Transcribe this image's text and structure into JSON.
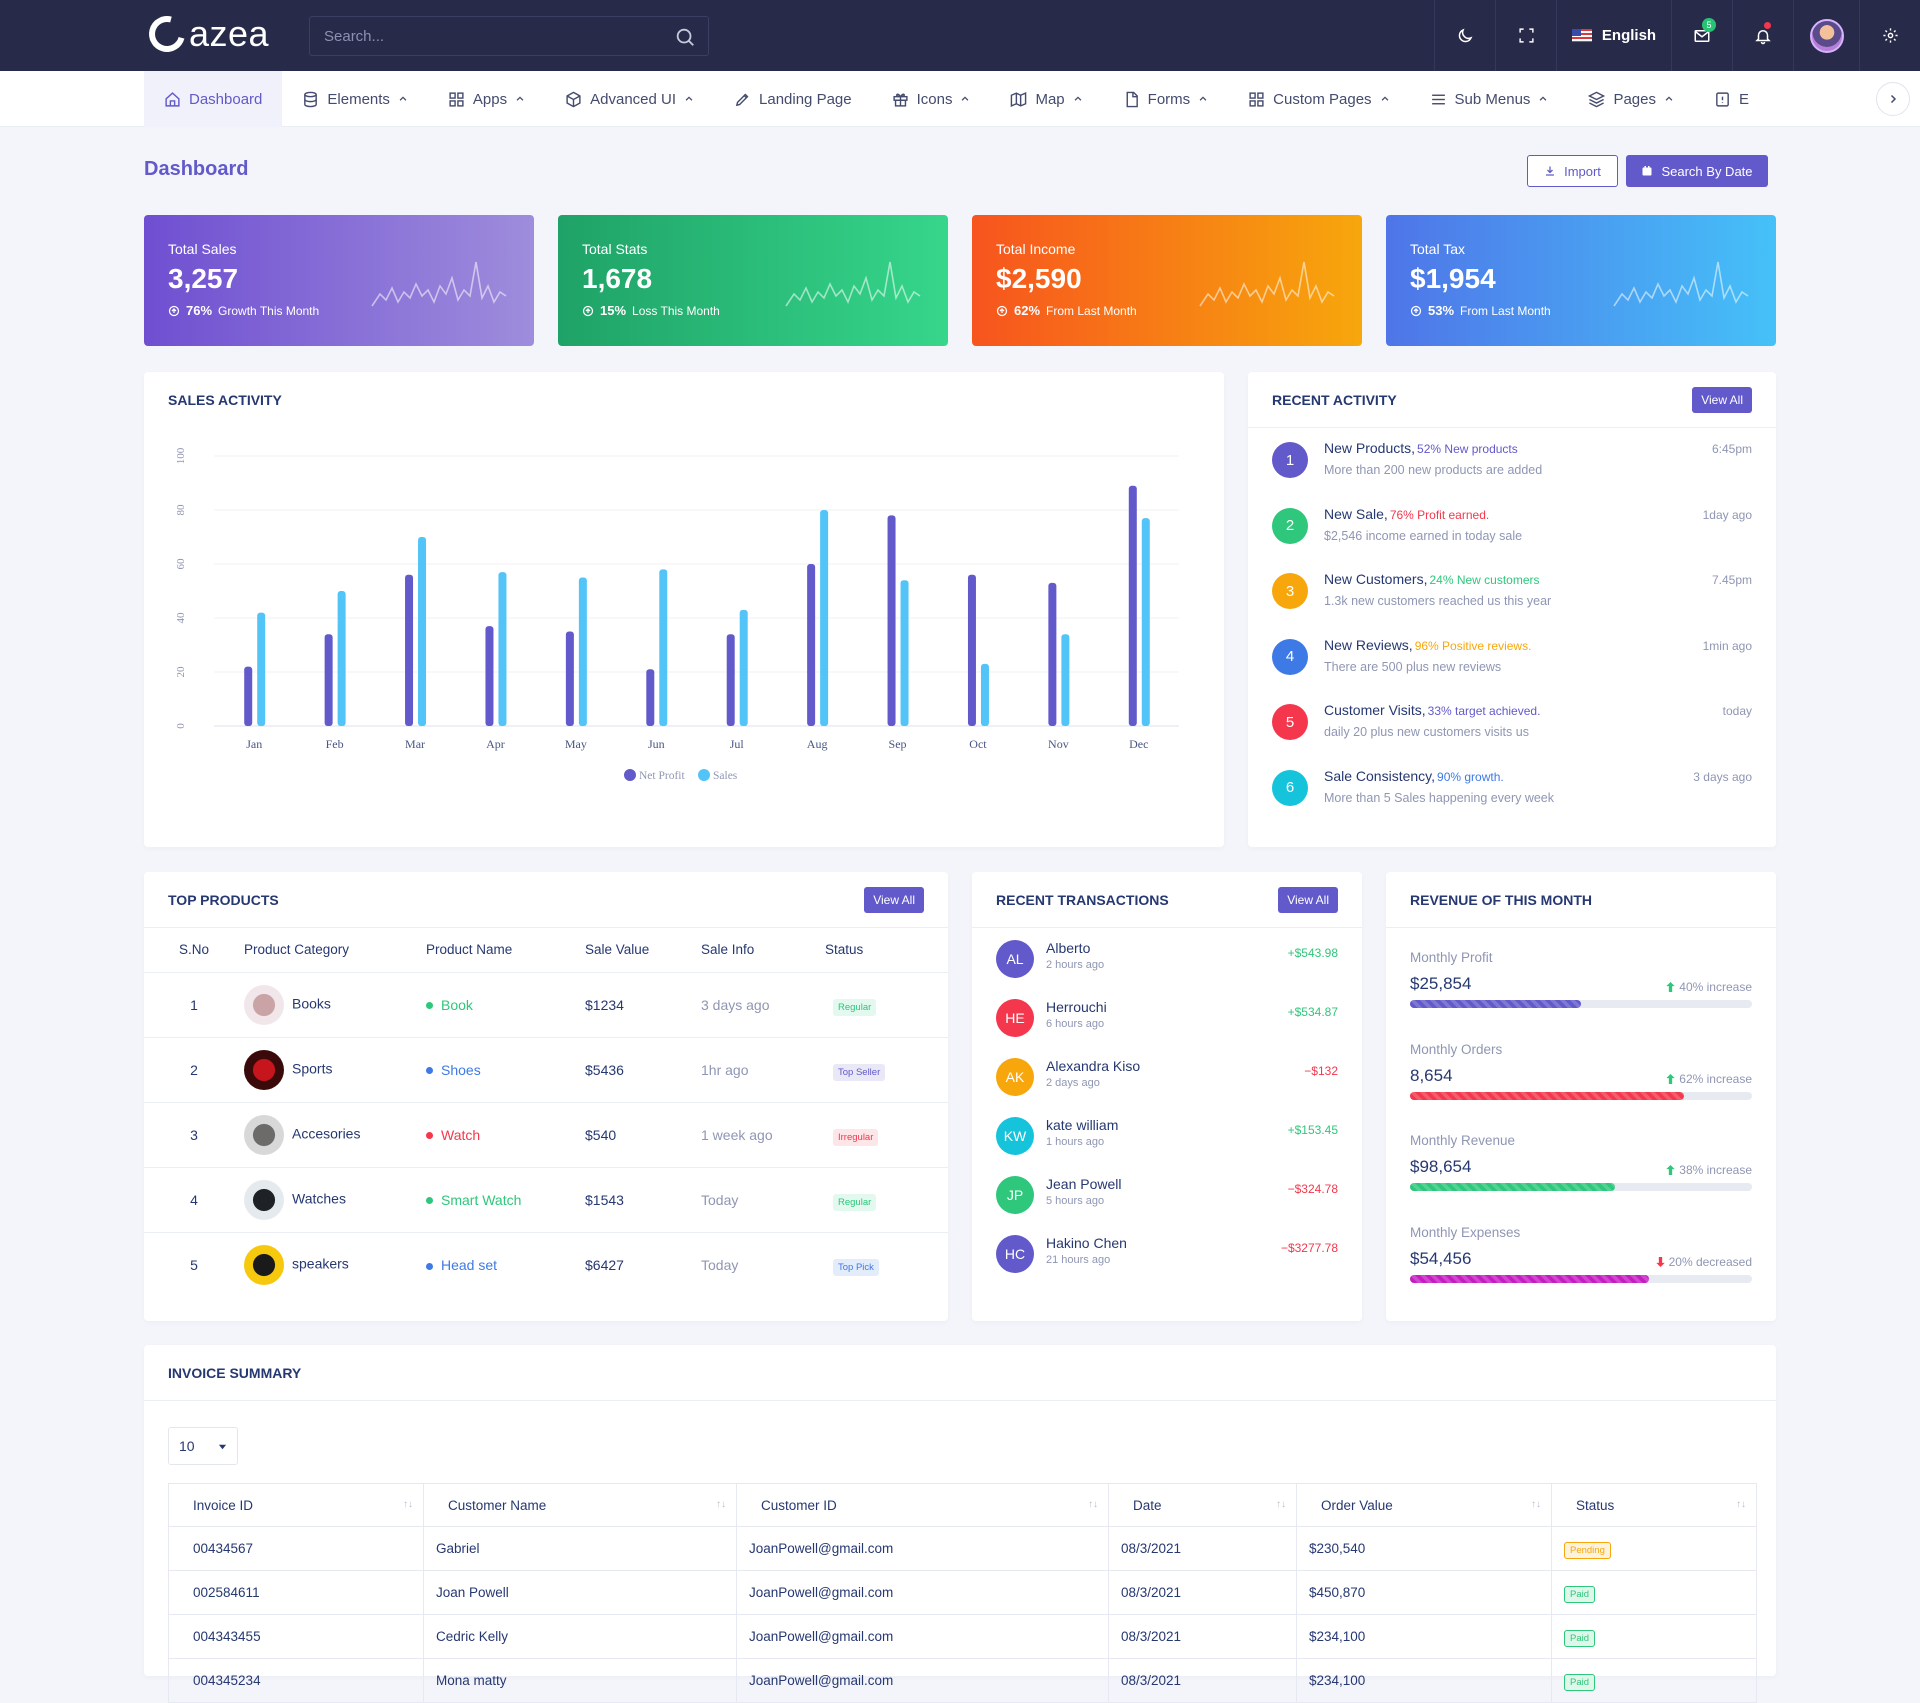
{
  "header": {
    "logo_text": "azea",
    "search_placeholder": "Search...",
    "language": "English",
    "mail_badge": "5"
  },
  "nav": {
    "items": [
      {
        "label": "Dashboard",
        "icon": "home-icon",
        "chevron": false,
        "active": true
      },
      {
        "label": "Elements",
        "icon": "database-icon",
        "chevron": true
      },
      {
        "label": "Apps",
        "icon": "grid-icon",
        "chevron": true
      },
      {
        "label": "Advanced UI",
        "icon": "package-icon",
        "chevron": true
      },
      {
        "label": "Landing Page",
        "icon": "edit-icon",
        "chevron": false
      },
      {
        "label": "Icons",
        "icon": "gift-icon",
        "chevron": true
      },
      {
        "label": "Map",
        "icon": "map-icon",
        "chevron": true
      },
      {
        "label": "Forms",
        "icon": "file-icon",
        "chevron": true
      },
      {
        "label": "Custom Pages",
        "icon": "grid-icon",
        "chevron": true
      },
      {
        "label": "Sub Menus",
        "icon": "menu-icon",
        "chevron": true
      },
      {
        "label": "Pages",
        "icon": "layers-icon",
        "chevron": true
      },
      {
        "label": "E",
        "icon": "alert-icon",
        "chevron": false
      }
    ]
  },
  "page": {
    "title": "Dashboard",
    "import_label": "Import",
    "search_by_date_label": "Search By Date"
  },
  "stats": [
    {
      "title": "Total Sales",
      "value": "3,257",
      "pct": "76%",
      "note": "Growth This Month",
      "gradient": [
        "#6f4fd1",
        "#9e8ddc"
      ]
    },
    {
      "title": "Total Stats",
      "value": "1,678",
      "pct": "15%",
      "note": "Loss This Month",
      "gradient": [
        "#1fa267",
        "#36d68b"
      ]
    },
    {
      "title": "Total Income",
      "value": "$2,590",
      "pct": "62%",
      "note": "From Last Month",
      "gradient": [
        "#f7541e",
        "#f7a70c"
      ]
    },
    {
      "title": "Total Tax",
      "value": "$1,954",
      "pct": "53%",
      "note": "From Last Month",
      "gradient": [
        "#4f75e8",
        "#45c1f8"
      ]
    }
  ],
  "sales_activity": {
    "title": "SALES ACTIVITY",
    "chart_data": {
      "type": "bar",
      "categories": [
        "Jan",
        "Feb",
        "Mar",
        "Apr",
        "May",
        "Jun",
        "Jul",
        "Aug",
        "Sep",
        "Oct",
        "Nov",
        "Dec"
      ],
      "series": [
        {
          "name": "Net Profit",
          "color": "#6259ca",
          "values": [
            22,
            34,
            56,
            37,
            35,
            21,
            34,
            60,
            78,
            56,
            53,
            89
          ]
        },
        {
          "name": "Sales",
          "color": "#53c4f7",
          "values": [
            42,
            50,
            70,
            57,
            55,
            58,
            43,
            80,
            54,
            23,
            34,
            77
          ]
        }
      ],
      "y_ticks": [
        "0",
        "20",
        "40",
        "60",
        "80",
        "100"
      ],
      "ylim": [
        0,
        100
      ],
      "legend": "bottom-center"
    }
  },
  "recent_activity": {
    "title": "RECENT ACTIVITY",
    "view_all": "View All",
    "items": [
      {
        "num": "1",
        "color": "#6259ca",
        "title": "New Products,",
        "hl": "52% New products",
        "hl_color": "#6259ca",
        "sub": "More than 200 new products are added",
        "time": "6:45pm"
      },
      {
        "num": "2",
        "color": "#2ec77b",
        "title": "New Sale,",
        "hl": "76% Profit earned.",
        "hl_color": "#f4374c",
        "sub": "$2,546 income earned in today sale",
        "time": "1day ago"
      },
      {
        "num": "3",
        "color": "#f7a70c",
        "title": "New Customers,",
        "hl": "24% New customers",
        "hl_color": "#2ec77b",
        "sub": "1.3k new customers reached us this year",
        "time": "7.45pm"
      },
      {
        "num": "4",
        "color": "#3d7ae6",
        "title": "New Reviews,",
        "hl": "96% Positive reviews.",
        "hl_color": "#f7a70c",
        "sub": "There are 500 plus new reviews",
        "time": "1min ago"
      },
      {
        "num": "5",
        "color": "#f4374c",
        "title": "Customer Visits,",
        "hl": "33% target achieved.",
        "hl_color": "#6259ca",
        "sub": "daily 20 plus new customers visits us",
        "time": "today"
      },
      {
        "num": "6",
        "color": "#15c3db",
        "title": "Sale Consistency,",
        "hl": "90% growth.",
        "hl_color": "#3d7ae6",
        "sub": "More than 5 Sales happening every week",
        "time": "3 days ago"
      }
    ]
  },
  "top_products": {
    "title": "TOP PRODUCTS",
    "view_all": "View All",
    "columns": [
      "S.No",
      "Product Category",
      "Product Name",
      "Sale Value",
      "Sale Info",
      "Status"
    ],
    "rows": [
      {
        "sno": "1",
        "category": "Books",
        "name": "Book",
        "name_color": "#2ec77b",
        "value": "$1234",
        "info": "3 days ago",
        "status": "Regular",
        "status_color": "#2ec77b",
        "status_bg": "#e3f8ee",
        "img": [
          "#c9a3a6",
          "#f1e6ea"
        ]
      },
      {
        "sno": "2",
        "category": "Sports",
        "name": "Shoes",
        "name_color": "#3d7ae6",
        "value": "$5436",
        "info": "1hr ago",
        "status": "Top Seller",
        "status_color": "#6259ca",
        "status_bg": "#e8e8f7",
        "img": [
          "#c6151d",
          "#3a0a0a"
        ]
      },
      {
        "sno": "3",
        "category": "Accesories",
        "name": "Watch",
        "name_color": "#f4374c",
        "value": "$540",
        "info": "1 week ago",
        "status": "Irregular",
        "status_color": "#f4374c",
        "status_bg": "#fde5e8",
        "img": [
          "#6d6a6a",
          "#d9d8d8"
        ]
      },
      {
        "sno": "4",
        "category": "Watches",
        "name": "Smart Watch",
        "name_color": "#2ec77b",
        "value": "$1543",
        "info": "Today",
        "status": "Regular",
        "status_color": "#2ec77b",
        "status_bg": "#e3f8ee",
        "img": [
          "#1e2126",
          "#e5eaee"
        ]
      },
      {
        "sno": "5",
        "category": "speakers",
        "name": "Head set",
        "name_color": "#3d7ae6",
        "value": "$6427",
        "info": "Today",
        "status": "Top Pick",
        "status_color": "#3d7ae6",
        "status_bg": "#e3ecfb",
        "img": [
          "#1a1a1a",
          "#f6c90e"
        ]
      }
    ]
  },
  "recent_transactions": {
    "title": "RECENT TRANSACTIONS",
    "view_all": "View All",
    "items": [
      {
        "initials": "AL",
        "color": "#6259ca",
        "name": "Alberto",
        "time": "2 hours ago",
        "amount": "+$543.98",
        "amount_color": "#2ec77b"
      },
      {
        "initials": "HE",
        "color": "#f4374c",
        "name": "Herrouchi",
        "time": "6 hours ago",
        "amount": "+$534.87",
        "amount_color": "#2ec77b"
      },
      {
        "initials": "AK",
        "color": "#f7a70c",
        "name": "Alexandra Kiso",
        "time": "2 days ago",
        "amount": "−$132",
        "amount_color": "#f4374c"
      },
      {
        "initials": "KW",
        "color": "#15c3db",
        "name": "kate william",
        "time": "1 hours ago",
        "amount": "+$153.45",
        "amount_color": "#2ec77b"
      },
      {
        "initials": "JP",
        "color": "#2ec77b",
        "name": "Jean Powell",
        "time": "5 hours ago",
        "amount": "−$324.78",
        "amount_color": "#f4374c"
      },
      {
        "initials": "HC",
        "color": "#6259ca",
        "name": "Hakino Chen",
        "time": "21 hours ago",
        "amount": "−$3277.78",
        "amount_color": "#f4374c"
      }
    ]
  },
  "revenue": {
    "title": "REVENUE OF THIS MONTH",
    "items": [
      {
        "label": "Monthly Profit",
        "value": "$25,854",
        "change": "40% increase",
        "up": true,
        "fill": 0.5,
        "color": "#6259ca"
      },
      {
        "label": "Monthly Orders",
        "value": "8,654",
        "change": "62% increase",
        "up": true,
        "fill": 0.8,
        "color": "#f4374c"
      },
      {
        "label": "Monthly Revenue",
        "value": "$98,654",
        "change": "38% increase",
        "up": true,
        "fill": 0.6,
        "color": "#2ec77b"
      },
      {
        "label": "Monthly Expenses",
        "value": "$54,456",
        "change": "20% decreased",
        "up": false,
        "fill": 0.7,
        "color": "#c41ec2"
      }
    ]
  },
  "invoice": {
    "title": "INVOICE SUMMARY",
    "page_length": "10",
    "columns": [
      "Invoice ID",
      "Customer Name",
      "Customer ID",
      "Date",
      "Order Value",
      "Status"
    ],
    "rows": [
      {
        "id": "00434567",
        "name": "Gabriel",
        "cid": "JoanPowell@gmail.com",
        "date": "08/3/2021",
        "value": "$230,540",
        "status": "Pending",
        "status_color": "#f7a70c",
        "status_bg": "#fdf2dc"
      },
      {
        "id": "002584611",
        "name": "Joan Powell",
        "cid": "JoanPowell@gmail.com",
        "date": "08/3/2021",
        "value": "$450,870",
        "status": "Paid",
        "status_color": "#2ec77b",
        "status_bg": "#dff7ea"
      },
      {
        "id": "004343455",
        "name": "Cedric Kelly",
        "cid": "JoanPowell@gmail.com",
        "date": "08/3/2021",
        "value": "$234,100",
        "status": "Paid",
        "status_color": "#2ec77b",
        "status_bg": "#dff7ea"
      },
      {
        "id": "004345234",
        "name": "Mona matty",
        "cid": "JoanPowell@gmail.com",
        "date": "08/3/2021",
        "value": "$234,100",
        "status": "Paid",
        "status_color": "#2ec77b",
        "status_bg": "#dff7ea"
      }
    ]
  }
}
